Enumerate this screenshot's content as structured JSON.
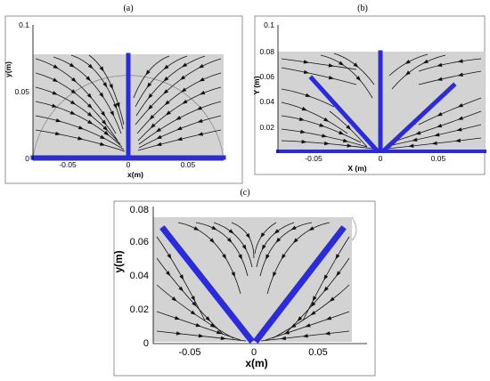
{
  "panels": {
    "a": {
      "label": "(a)",
      "ylabel": "y(m)",
      "xlabel": "x(m)",
      "yticks": [
        "0.1",
        "0.05",
        "0"
      ],
      "xticks": [
        "-0.05",
        "0",
        "0.05"
      ]
    },
    "b": {
      "label": "(b)",
      "ylabel": "Y (m)",
      "xlabel": "X (m)",
      "yticks": [
        "0.1",
        "0.08",
        "0.06",
        "0.04",
        "0.02"
      ],
      "xticks": [
        "-0.05",
        "0",
        "0.05"
      ]
    },
    "c": {
      "label": "(c)",
      "ylabel": "y(m)",
      "xlabel": "x(m)",
      "yticks": [
        "0.08",
        "0.06",
        "0.04",
        "0.02",
        "0"
      ],
      "xticks": [
        "-0.05",
        "0",
        "0.05"
      ]
    }
  },
  "colors": {
    "plate": "#2b2bd8",
    "domain": "#d3d3d3",
    "streamline": "#111111"
  }
}
